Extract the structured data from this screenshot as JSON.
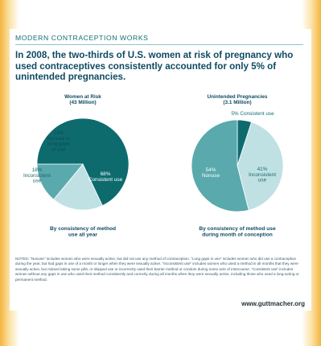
{
  "kicker": "MODERN CONTRACEPTION WORKS",
  "headline": "In 2008, the two-thirds of U.S. women at risk of pregnancy who used contraceptives consistently accounted for only 5% of unintended pregnancies.",
  "chart_data": [
    {
      "type": "pie",
      "title_lines": [
        "Women at Risk",
        "(43 Million)"
      ],
      "caption_lines": [
        "By consistency of method",
        "use all year"
      ],
      "slices": [
        {
          "label_lines": [
            "68%",
            "Consistent use"
          ],
          "value": 68,
          "color": "#0d6b6e",
          "text_color": "#ffffff"
        },
        {
          "label_lines": [
            "18%",
            "Inconsistent",
            "use"
          ],
          "value": 18,
          "color": "#bfe1e3",
          "text_color": "#1f6670"
        },
        {
          "label_lines": [
            "14%",
            "Nonuse or",
            "long gaps",
            "in use"
          ],
          "value": 14,
          "color": "#5aa9ad",
          "text_color": "#0f4a55"
        }
      ]
    },
    {
      "type": "pie",
      "title_lines": [
        "Unintended Pregnancies",
        "(3.1 Million)"
      ],
      "caption_lines": [
        "By consistency of method use",
        "during month of conception"
      ],
      "slices": [
        {
          "label_lines": [
            "5% Consistent use"
          ],
          "value": 5,
          "color": "#0d6b6e",
          "text_color": "#0f6f73"
        },
        {
          "label_lines": [
            "41%",
            "Inconsistent",
            "use"
          ],
          "value": 41,
          "color": "#bfe1e3",
          "text_color": "#1f6670"
        },
        {
          "label_lines": [
            "54%",
            "Nonuse"
          ],
          "value": 54,
          "color": "#5aa9ad",
          "text_color": "#ffffff"
        }
      ]
    }
  ],
  "notes": "NOTES: \"Nonuse\" includes women who were sexually active, but did not use any method of contraception. \"Long gaps in use\" includes women who did use a contraceptive during the year, but had gaps in use of a month or longer when they were sexually active. \"Inconsistent use\" includes women who used a method in all months that they were sexually active, but missed taking some pills, or skipped use or incorrectly used their barrier method or condom during some acts of intercourse. \"Consistent use\" includes women without any gaps in use who used their method consistently and correctly during all months when they were sexually active, including those who used a long-acting or permanent method.",
  "url": "www.guttmacher.org"
}
